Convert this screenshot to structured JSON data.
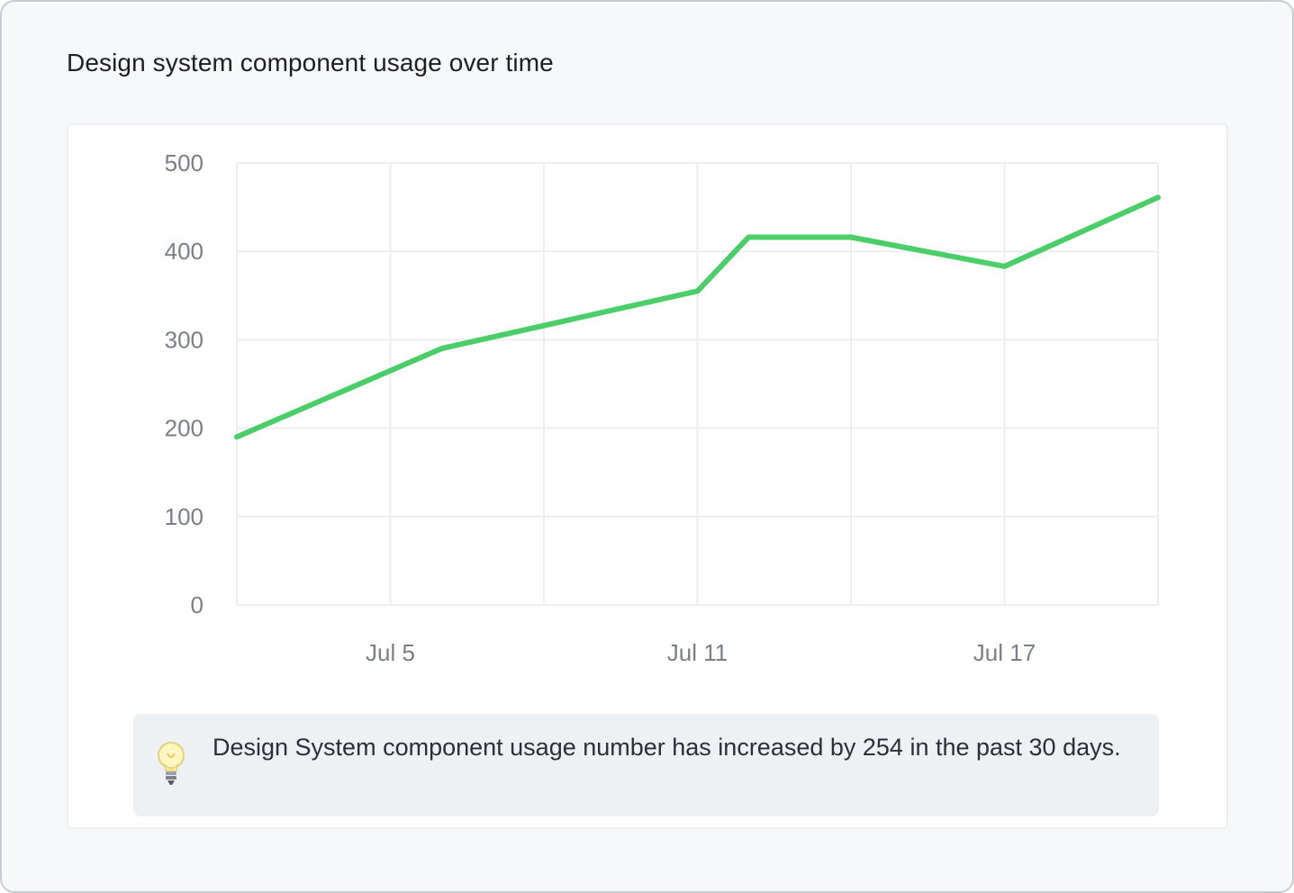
{
  "card": {
    "title": "Design system component usage over time"
  },
  "chart_data": {
    "type": "line",
    "title": "",
    "xlabel": "",
    "ylabel": "",
    "x": [
      "Jul 2",
      "Jul 6",
      "Jul 11",
      "Jul 12",
      "Jul 14",
      "Jul 17",
      "Jul 20"
    ],
    "x_tick_labels": [
      "Jul 5",
      "Jul 11",
      "Jul 17"
    ],
    "y_ticks": [
      0,
      100,
      200,
      300,
      400,
      500
    ],
    "ylim": [
      0,
      500
    ],
    "grid": true,
    "series": [
      {
        "name": "",
        "color": "#4bce6a",
        "values": [
          190,
          290,
          355,
          416,
          416,
          383,
          461
        ]
      }
    ]
  },
  "insight": {
    "icon": "lightbulb-icon",
    "text": "Design System component usage number has increased by 254 in the past 30 days."
  }
}
